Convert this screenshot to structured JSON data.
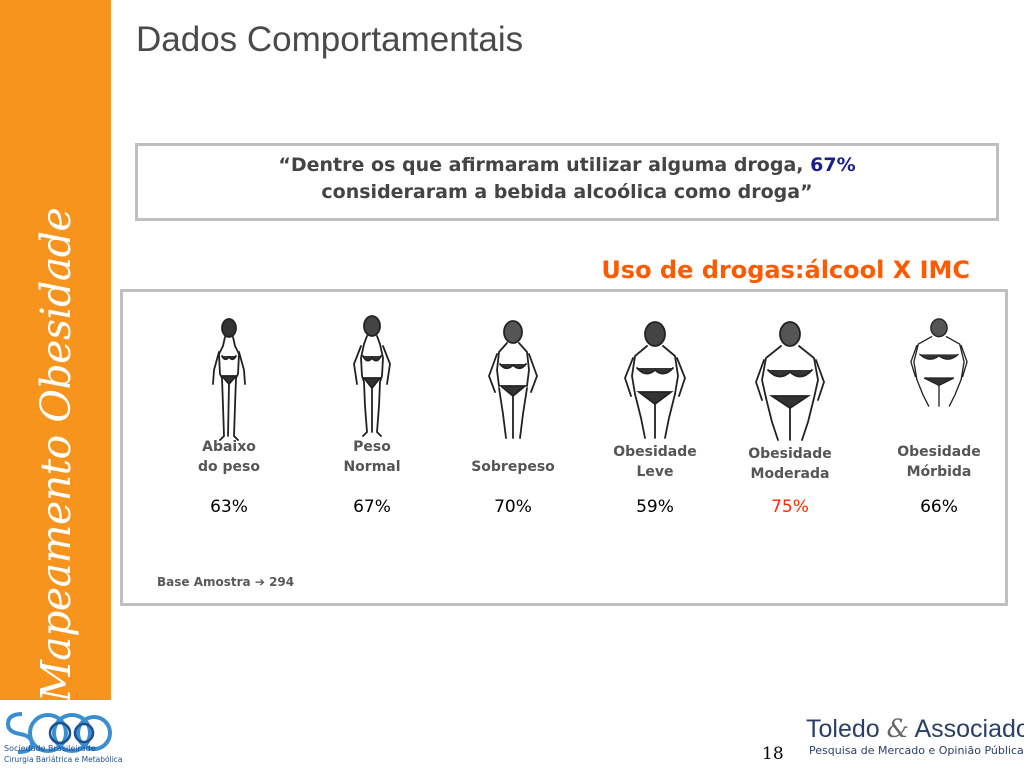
{
  "sidebar": {
    "label": "Mapeamento Obesidade",
    "color": "#f7941d"
  },
  "slide": {
    "title": "Dados Comportamentais",
    "page_number": "18"
  },
  "quote": {
    "line1_before": "“Dentre os que afirmaram utilizar alguma droga,",
    "highlight": "67%",
    "line2": "consideraram a bebida alcoólica como droga”"
  },
  "chart": {
    "title": "Uso de drogas:álcool X IMC",
    "title_color": "#ff5a00"
  },
  "categories": [
    {
      "label_line1": "Abaixo",
      "label_line2": "do peso",
      "value": "63%",
      "icon": "underweight-figure-icon",
      "highlight": false
    },
    {
      "label_line1": "Peso",
      "label_line2": "Normal",
      "value": "67%",
      "icon": "normal-weight-figure-icon",
      "highlight": false
    },
    {
      "label_line1": "Sobrepeso",
      "label_line2": "",
      "value": "70%",
      "icon": "overweight-figure-icon",
      "highlight": false
    },
    {
      "label_line1": "Obesidade",
      "label_line2": "Leve",
      "value": "59%",
      "icon": "mild-obesity-figure-icon",
      "highlight": false
    },
    {
      "label_line1": "Obesidade",
      "label_line2": "Moderada",
      "value": "75%",
      "icon": "moderate-obesity-figure-icon",
      "highlight": true
    },
    {
      "label_line1": "Obesidade",
      "label_line2": "Mórbida",
      "value": "66%",
      "icon": "morbid-obesity-figure-icon",
      "highlight": false
    }
  ],
  "base": {
    "label": "Base Amostra",
    "arrow": "➔",
    "value": "294"
  },
  "logos": {
    "sbcbm": {
      "line1": "Sociedade Brasileirade",
      "line2": "Cirurgia Bariátrica e Metabólica"
    },
    "toledo": {
      "name_part1": "Toledo",
      "amp": "&",
      "name_part2": "Associados",
      "tagline": "Pesquisa de Mercado e  Opinião Pública"
    }
  }
}
